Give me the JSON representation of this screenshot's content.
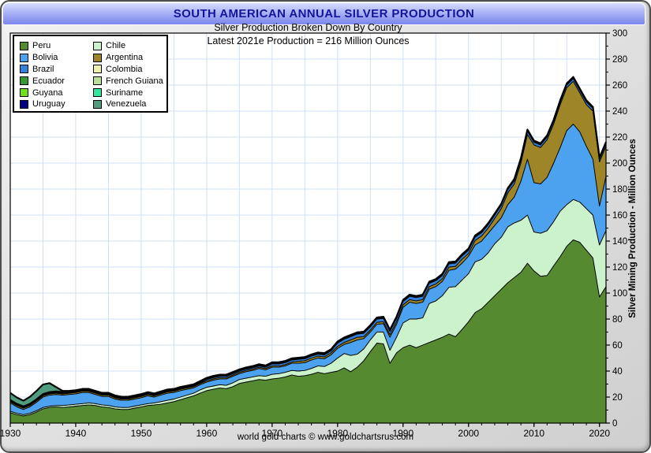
{
  "header": {
    "title": "SOUTH AMERICAN ANNUAL SILVER PRODUCTION"
  },
  "footer": {
    "credit": "world gold charts © www.goldchartsrus.com"
  },
  "legend": {
    "columns": [
      [
        {
          "label": "Peru",
          "color": "#568A30"
        },
        {
          "label": "Bolivia",
          "color": "#4DA2F0"
        },
        {
          "label": "Brazil",
          "color": "#3381D9"
        },
        {
          "label": "Ecuador",
          "color": "#339933"
        },
        {
          "label": "Guyana",
          "color": "#6FE01A"
        },
        {
          "label": "Uruguay",
          "color": "#000080"
        }
      ],
      [
        {
          "label": "Chile",
          "color": "#CCF2CC"
        },
        {
          "label": "Argentina",
          "color": "#9E8527"
        },
        {
          "label": "Colombia",
          "color": "#EEF2B0"
        },
        {
          "label": "French Guiana",
          "color": "#B8E096"
        },
        {
          "label": "Suriname",
          "color": "#33E69E"
        },
        {
          "label": "Venezuela",
          "color": "#4F9C7E"
        }
      ]
    ]
  },
  "chart_data": {
    "type": "area",
    "stacked": true,
    "title": "SOUTH AMERICAN ANNUAL SILVER PRODUCTION",
    "subtitle": "Silver Production Broken Down By Country",
    "annotation": "Latest 2021e  Production = 216 Million Ounces",
    "ylabel": "Silver Mining Production - Million Ounces",
    "xlim": [
      1930,
      2021
    ],
    "ylim": [
      0,
      300
    ],
    "x_ticks": [
      1930,
      1940,
      1950,
      1960,
      1970,
      1980,
      1990,
      2000,
      2010,
      2020
    ],
    "x_minor_step": 2,
    "y_ticks": [
      0,
      20,
      40,
      60,
      80,
      100,
      120,
      140,
      160,
      180,
      200,
      220,
      240,
      260,
      280,
      300
    ],
    "y_minor_step": 10,
    "grid": {
      "x_step": 5,
      "y_step": 20,
      "color": "#cfe0f2"
    },
    "plot_bg": "#ffffff",
    "outline_color": "#000000",
    "years_start": 1930,
    "series": [
      {
        "name": "Peru",
        "color": "#568A30",
        "values": [
          8,
          6.5,
          5.5,
          6.5,
          8.5,
          11,
          12,
          12.5,
          12,
          12.5,
          13,
          13.5,
          14,
          13.5,
          12.5,
          12,
          11,
          10.5,
          10.5,
          11.5,
          12.5,
          13.5,
          14,
          14.5,
          15.5,
          16.5,
          18,
          19.5,
          21,
          23,
          25,
          26,
          27,
          26.5,
          28,
          30.5,
          31.5,
          32.5,
          33.5,
          33,
          34,
          34.5,
          35.5,
          37,
          36,
          36.5,
          37.5,
          39,
          38,
          39,
          40,
          42.5,
          39.5,
          43,
          48,
          55,
          61.5,
          61,
          46,
          54,
          58,
          60,
          58,
          60,
          62,
          64,
          66,
          68.5,
          66.5,
          72,
          78,
          85,
          88,
          93,
          98,
          103,
          108,
          112,
          116,
          123,
          117,
          113,
          113.5,
          121,
          128,
          136,
          141,
          139,
          133,
          127,
          97,
          105
        ]
      },
      {
        "name": "Chile",
        "color": "#CCF2CC",
        "values": [
          1,
          1,
          1,
          1,
          1,
          1,
          1,
          1,
          1.5,
          1.5,
          1.5,
          1.5,
          1.5,
          1.5,
          1.5,
          1.5,
          1.5,
          1.5,
          1.5,
          1.5,
          1.5,
          1.5,
          1.5,
          2,
          2,
          2,
          2,
          2,
          2,
          2.5,
          2.5,
          2.5,
          2.5,
          2.5,
          3,
          3,
          3,
          3,
          3,
          3,
          3.5,
          3.5,
          3.5,
          3.5,
          4,
          4,
          4.5,
          5,
          5.5,
          7,
          10,
          11,
          12.5,
          10,
          9,
          9,
          8.5,
          9,
          10,
          12,
          19,
          20,
          22,
          21,
          30,
          30,
          32,
          36,
          38.5,
          38,
          37,
          39,
          38,
          38,
          40,
          40,
          43,
          42,
          40,
          37,
          30,
          33,
          34.5,
          34,
          35,
          32,
          31,
          31,
          32,
          33,
          40,
          43
        ]
      },
      {
        "name": "Bolivia",
        "color": "#4DA2F0",
        "values": [
          6.5,
          5,
          4,
          5,
          6.5,
          8,
          8.5,
          8.5,
          8,
          8,
          8,
          8.5,
          8,
          7,
          6.5,
          7,
          6,
          5.5,
          5.5,
          5.5,
          5.5,
          6,
          4.5,
          5,
          5.5,
          5,
          5,
          4.5,
          4,
          4,
          4,
          4.5,
          4.5,
          5,
          5,
          4.5,
          5,
          5,
          5.5,
          5,
          5.5,
          5,
          5,
          5.5,
          6,
          6,
          6.5,
          6,
          6,
          6.5,
          7.5,
          7,
          10,
          11,
          8,
          6,
          6,
          6.5,
          10,
          10,
          12,
          13,
          12,
          12,
          11,
          11,
          11,
          13,
          13.5,
          13,
          13.5,
          13,
          14,
          15,
          14,
          15,
          17,
          20,
          30,
          43,
          38,
          38,
          41,
          45,
          49,
          57,
          58,
          54,
          48,
          43,
          30,
          42
        ]
      },
      {
        "name": "Argentina",
        "color": "#9E8527",
        "values": [
          1,
          1,
          1,
          1,
          1,
          1,
          1,
          1,
          1,
          1,
          1,
          1,
          1,
          1,
          1,
          1,
          1,
          1,
          1,
          1,
          1,
          1,
          1,
          1,
          1,
          1,
          1,
          1,
          1,
          1,
          1,
          1,
          1,
          1,
          1,
          1,
          1,
          1,
          1,
          1,
          1,
          1,
          1,
          1,
          1.5,
          1.5,
          1.5,
          1.5,
          1.5,
          1.5,
          1.5,
          1.5,
          2,
          2,
          1.5,
          1.5,
          1.5,
          1.5,
          2,
          2,
          2,
          2,
          2,
          2,
          2,
          2,
          2,
          2.5,
          2,
          3,
          2,
          3.5,
          4,
          4,
          5.5,
          7,
          9,
          10,
          14,
          19,
          29,
          28,
          29,
          30,
          33,
          33,
          33,
          30,
          32,
          37,
          34,
          23
        ]
      },
      {
        "name": "Brazil",
        "color": "#3381D9",
        "values": {
          "default": 2,
          "by_year": {
            "1930": 0.5,
            "1960": 1,
            "1970": 1.5,
            "1980": 2.5,
            "2010": 2
          }
        }
      },
      {
        "name": "Ecuador",
        "color": "#339933",
        "values": {
          "default": 0.3,
          "by_year": {
            "1930": 0.3
          }
        }
      },
      {
        "name": "Guyana",
        "color": "#6FE01A",
        "values": {
          "default": 0.2,
          "by_year": {
            "1930": 0.2
          }
        }
      },
      {
        "name": "Uruguay",
        "color": "#000080",
        "values": {
          "default": 0.1,
          "by_year": {
            "1930": 0.1
          }
        }
      },
      {
        "name": "Colombia",
        "color": "#EEF2B0",
        "values": {
          "default": 0.3,
          "by_year": {
            "1930": 0.3
          }
        }
      },
      {
        "name": "French Guiana",
        "color": "#B8E096",
        "values": {
          "default": 0.1,
          "by_year": {
            "1930": 0.1
          }
        }
      },
      {
        "name": "Suriname",
        "color": "#33E69E",
        "values": {
          "default": 0.2,
          "by_year": {
            "1930": 0.2
          }
        }
      },
      {
        "name": "Venezuela",
        "color": "#4F9C7E",
        "values": {
          "default": 0.1,
          "by_year": {
            "1930": 5,
            "1931": 4.5,
            "1932": 4,
            "1933": 5,
            "1934": 6,
            "1935": 7,
            "1936": 6.5,
            "1937": 3,
            "1938": 0.5,
            "1939": 0.1
          }
        }
      }
    ]
  }
}
